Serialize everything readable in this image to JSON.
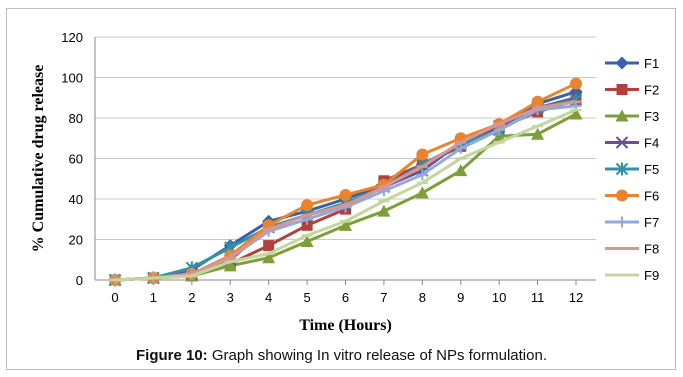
{
  "chart_data": {
    "type": "line",
    "title": "",
    "xlabel": "Time (Hours)",
    "ylabel": "% Cumulative drug release",
    "x": [
      0,
      1,
      2,
      3,
      4,
      5,
      6,
      7,
      8,
      9,
      10,
      11,
      12
    ],
    "ylim": [
      0,
      120
    ],
    "yticks": [
      0,
      20,
      40,
      60,
      80,
      100,
      120
    ],
    "grid": "horizontal",
    "legend": "right",
    "series": [
      {
        "name": "F1",
        "color": "#3a62a8",
        "marker": "diamond",
        "values": [
          0,
          1,
          5,
          17,
          29,
          34,
          40,
          47,
          57,
          67,
          76,
          87,
          93
        ]
      },
      {
        "name": "F2",
        "color": "#b2413c",
        "marker": "square",
        "values": [
          0,
          1,
          3,
          8,
          17,
          27,
          35,
          49,
          57,
          66,
          75,
          83,
          89
        ]
      },
      {
        "name": "F3",
        "color": "#7e9e3a",
        "marker": "triangle",
        "values": [
          0,
          1,
          2,
          7,
          11,
          19,
          27,
          34,
          43,
          54,
          71,
          72,
          82
        ]
      },
      {
        "name": "F4",
        "color": "#6d4f8c",
        "marker": "x",
        "values": [
          0,
          1,
          3,
          10,
          26,
          32,
          37,
          46,
          54,
          68,
          76,
          85,
          90
        ]
      },
      {
        "name": "F5",
        "color": "#2f93a5",
        "marker": "asterisk",
        "values": [
          0,
          1,
          6,
          16,
          26,
          32,
          38,
          46,
          57,
          67,
          74,
          85,
          89
        ]
      },
      {
        "name": "F6",
        "color": "#e9842d",
        "marker": "circle",
        "values": [
          0,
          1,
          3,
          12,
          27,
          37,
          42,
          47,
          62,
          70,
          77,
          88,
          97
        ]
      },
      {
        "name": "F7",
        "color": "#92a9d9",
        "marker": "plus",
        "values": [
          0,
          1,
          3,
          11,
          24,
          30,
          36,
          44,
          52,
          65,
          74,
          84,
          86
        ]
      },
      {
        "name": "F8",
        "color": "#d99594",
        "marker": "dash",
        "values": [
          0,
          1,
          3,
          11,
          25,
          32,
          37,
          46,
          56,
          68,
          77,
          85,
          88
        ]
      },
      {
        "name": "F9",
        "color": "#c3d69b",
        "marker": "dash",
        "values": [
          0,
          1,
          2,
          9,
          13,
          22,
          29,
          39,
          48,
          60,
          68,
          76,
          84
        ]
      }
    ]
  },
  "caption": {
    "label": "Figure 10:",
    "text": " Graph showing In vitro release of NPs formulation."
  }
}
